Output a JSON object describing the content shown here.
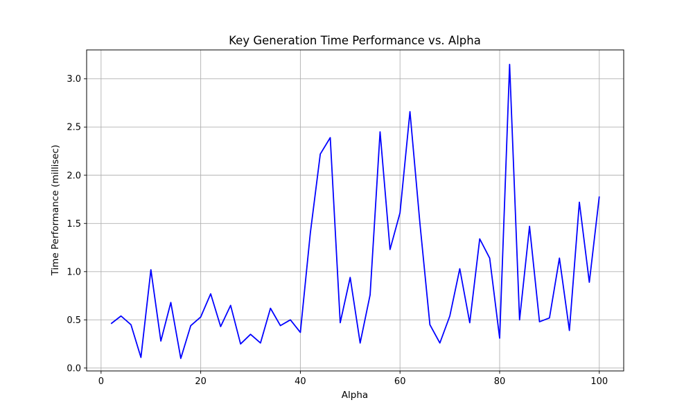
{
  "chart_data": {
    "type": "line",
    "title": "Key Generation Time Performance vs. Alpha",
    "xlabel": "Alpha",
    "ylabel": "Time Performance (millisec)",
    "xlim": [
      -2.9,
      104.9
    ],
    "ylim": [
      -0.03,
      3.3
    ],
    "xticks": [
      0,
      20,
      40,
      60,
      80,
      100
    ],
    "xtick_labels": [
      "0",
      "20",
      "40",
      "60",
      "80",
      "100"
    ],
    "yticks": [
      0.0,
      0.5,
      1.0,
      1.5,
      2.0,
      2.5,
      3.0
    ],
    "ytick_labels": [
      "0.0",
      "0.5",
      "1.0",
      "1.5",
      "2.0",
      "2.5",
      "3.0"
    ],
    "grid": true,
    "line_color": "#0000ff",
    "x": [
      2,
      4,
      6,
      8,
      10,
      12,
      14,
      16,
      18,
      20,
      22,
      24,
      26,
      28,
      30,
      32,
      34,
      36,
      38,
      40,
      42,
      44,
      46,
      48,
      50,
      52,
      54,
      56,
      58,
      60,
      62,
      64,
      66,
      68,
      70,
      72,
      74,
      76,
      78,
      80,
      82,
      84,
      86,
      88,
      90,
      92,
      94,
      96,
      98,
      100
    ],
    "y": [
      0.46,
      0.54,
      0.45,
      0.11,
      1.02,
      0.28,
      0.68,
      0.1,
      0.44,
      0.53,
      0.77,
      0.43,
      0.65,
      0.25,
      0.35,
      0.26,
      0.62,
      0.44,
      0.5,
      0.37,
      1.4,
      2.22,
      2.39,
      0.47,
      0.94,
      0.26,
      0.76,
      2.45,
      1.23,
      1.61,
      2.66,
      1.5,
      0.45,
      0.26,
      0.54,
      1.03,
      0.47,
      1.34,
      1.14,
      0.31,
      3.15,
      0.5,
      1.47,
      0.48,
      0.52,
      1.14,
      0.39,
      1.72,
      0.89,
      1.78
    ]
  }
}
